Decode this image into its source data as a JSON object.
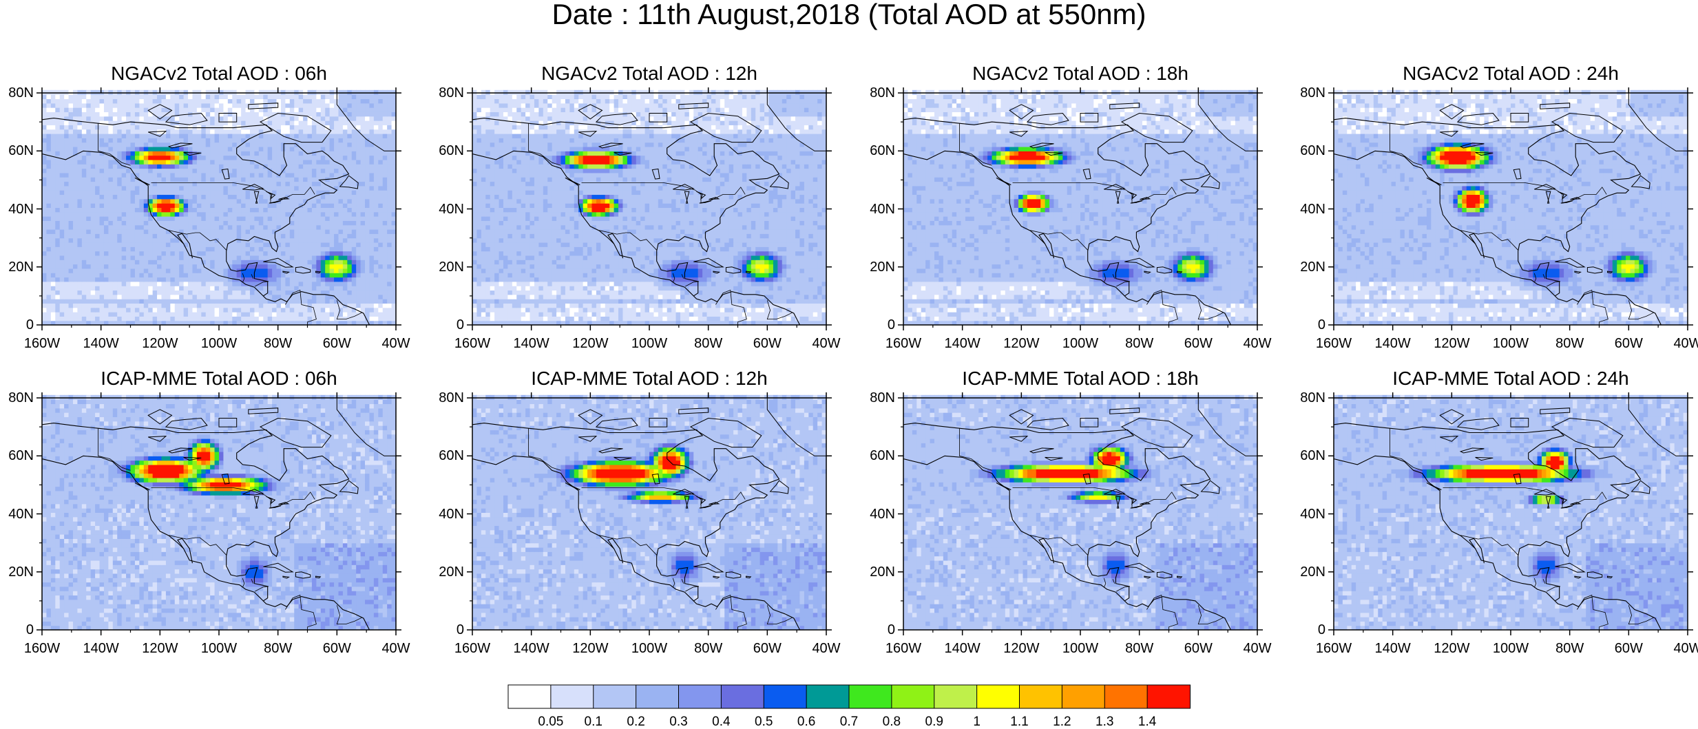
{
  "title": "Date : 11th August,2018 (Total AOD at 550nm)",
  "lat_ticks": [
    "80N",
    "60N",
    "40N",
    "20N",
    "0"
  ],
  "lon_ticks": [
    "160W",
    "140W",
    "120W",
    "100W",
    "80W",
    "60W",
    "40W"
  ],
  "chart_data": {
    "type": "heatmap",
    "variable": "Total AOD at 550nm",
    "date": "11th August,2018",
    "domain": {
      "lon": [
        -160,
        -40
      ],
      "lat": [
        0,
        80
      ]
    },
    "panels": [
      {
        "title": "NGACv2 Total AOD : 06h",
        "model": "NGACv2",
        "lead": "06h",
        "plumes": [
          {
            "lon": -118,
            "lat": 41,
            "peak": 1.4,
            "rlon": 6,
            "rlat": 3
          },
          {
            "lon": -120,
            "lat": 58,
            "peak": 1.2,
            "rlon": 10,
            "rlat": 3
          },
          {
            "lon": -60,
            "lat": 20,
            "peak": 0.8,
            "rlon": 7,
            "rlat": 5
          },
          {
            "lon": -88,
            "lat": 18,
            "peak": 0.45,
            "rlon": 10,
            "rlat": 5
          }
        ]
      },
      {
        "title": "NGACv2 Total AOD : 12h",
        "model": "NGACv2",
        "lead": "12h",
        "plumes": [
          {
            "lon": -117,
            "lat": 41,
            "peak": 1.4,
            "rlon": 6,
            "rlat": 3
          },
          {
            "lon": -118,
            "lat": 57,
            "peak": 1.3,
            "rlon": 11,
            "rlat": 3
          },
          {
            "lon": -62,
            "lat": 20,
            "peak": 0.8,
            "rlon": 7,
            "rlat": 5
          },
          {
            "lon": -88,
            "lat": 18,
            "peak": 0.45,
            "rlon": 10,
            "rlat": 5
          }
        ]
      },
      {
        "title": "NGACv2 Total AOD : 18h",
        "model": "NGACv2",
        "lead": "18h",
        "plumes": [
          {
            "lon": -116,
            "lat": 42,
            "peak": 1.4,
            "rlon": 5,
            "rlat": 3
          },
          {
            "lon": -118,
            "lat": 58,
            "peak": 1.3,
            "rlon": 12,
            "rlat": 3
          },
          {
            "lon": -62,
            "lat": 20,
            "peak": 0.8,
            "rlon": 7,
            "rlat": 5
          },
          {
            "lon": -88,
            "lat": 18,
            "peak": 0.45,
            "rlon": 10,
            "rlat": 5
          }
        ]
      },
      {
        "title": "NGACv2 Total AOD : 24h",
        "model": "NGACv2",
        "lead": "24h",
        "plumes": [
          {
            "lon": -113,
            "lat": 43,
            "peak": 1.4,
            "rlon": 5,
            "rlat": 4
          },
          {
            "lon": -118,
            "lat": 58,
            "peak": 1.4,
            "rlon": 10,
            "rlat": 4
          },
          {
            "lon": -60,
            "lat": 20,
            "peak": 0.8,
            "rlon": 7,
            "rlat": 5
          },
          {
            "lon": -88,
            "lat": 18,
            "peak": 0.45,
            "rlon": 10,
            "rlat": 5
          }
        ]
      },
      {
        "title": "ICAP-MME Total AOD : 06h",
        "model": "ICAP-MME",
        "lead": "06h",
        "plumes": [
          {
            "lon": -118,
            "lat": 55,
            "peak": 1.4,
            "rlon": 12,
            "rlat": 4
          },
          {
            "lon": -98,
            "lat": 50,
            "peak": 1.2,
            "rlon": 14,
            "rlat": 3
          },
          {
            "lon": -105,
            "lat": 60,
            "peak": 1.2,
            "rlon": 5,
            "rlat": 5
          },
          {
            "lon": -88,
            "lat": 20,
            "peak": 0.45,
            "rlon": 6,
            "rlat": 6
          }
        ]
      },
      {
        "title": "ICAP-MME Total AOD : 12h",
        "model": "ICAP-MME",
        "lead": "12h",
        "plumes": [
          {
            "lon": -110,
            "lat": 54,
            "peak": 1.4,
            "rlon": 16,
            "rlat": 4
          },
          {
            "lon": -93,
            "lat": 58,
            "peak": 1.3,
            "rlon": 6,
            "rlat": 5
          },
          {
            "lon": -96,
            "lat": 46,
            "peak": 0.9,
            "rlon": 12,
            "rlat": 2
          },
          {
            "lon": -88,
            "lat": 22,
            "peak": 0.45,
            "rlon": 6,
            "rlat": 6
          }
        ]
      },
      {
        "title": "ICAP-MME Total AOD : 18h",
        "model": "ICAP-MME",
        "lead": "18h",
        "plumes": [
          {
            "lon": -105,
            "lat": 54,
            "peak": 1.4,
            "rlon": 22,
            "rlat": 3
          },
          {
            "lon": -90,
            "lat": 59,
            "peak": 1.3,
            "rlon": 6,
            "rlat": 4
          },
          {
            "lon": -94,
            "lat": 46,
            "peak": 0.8,
            "rlon": 10,
            "rlat": 2
          },
          {
            "lon": -88,
            "lat": 22,
            "peak": 0.45,
            "rlon": 6,
            "rlat": 6
          }
        ]
      },
      {
        "title": "ICAP-MME Total AOD : 24h",
        "model": "ICAP-MME",
        "lead": "24h",
        "plumes": [
          {
            "lon": -103,
            "lat": 54,
            "peak": 1.4,
            "rlon": 24,
            "rlat": 3
          },
          {
            "lon": -85,
            "lat": 58,
            "peak": 1.3,
            "rlon": 5,
            "rlat": 4
          },
          {
            "lon": -88,
            "lat": 45,
            "peak": 0.8,
            "rlon": 6,
            "rlat": 2
          },
          {
            "lon": -88,
            "lat": 22,
            "peak": 0.45,
            "rlon": 6,
            "rlat": 6
          }
        ]
      }
    ],
    "colorbar": {
      "levels": [
        "0.05",
        "0.1",
        "0.2",
        "0.3",
        "0.4",
        "0.5",
        "0.6",
        "0.7",
        "0.8",
        "0.9",
        "1",
        "1.1",
        "1.2",
        "1.3",
        "1.4"
      ],
      "colors": [
        "#ffffff",
        "#d7e0fb",
        "#b3c6f5",
        "#9ab3f2",
        "#8396ee",
        "#6a6ee0",
        "#0a5cf0",
        "#009a96",
        "#3fe81e",
        "#8ff216",
        "#bff04a",
        "#ffff00",
        "#ffc200",
        "#ffa000",
        "#ff7300",
        "#ff1400"
      ]
    }
  }
}
